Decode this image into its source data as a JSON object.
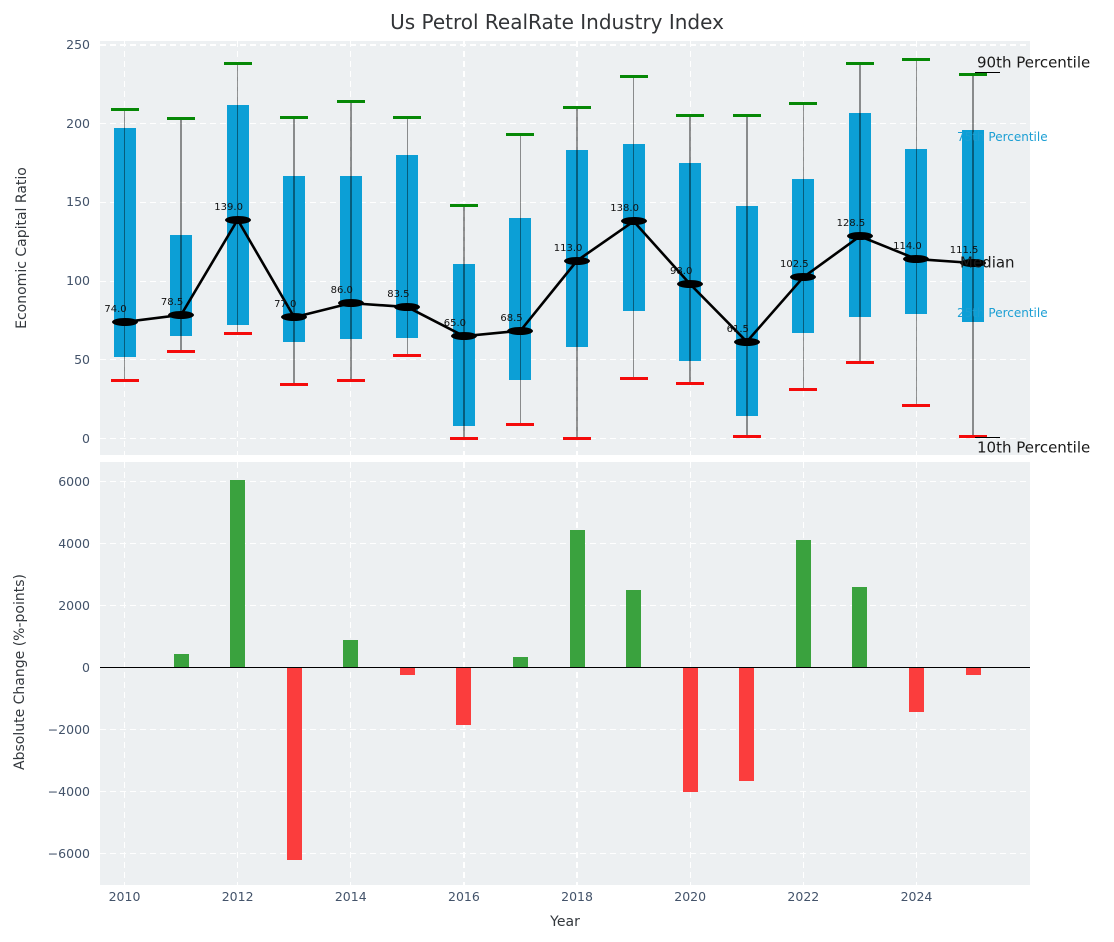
{
  "title": "Us Petrol RealRate Industry Index",
  "styles": {
    "panel_bg": "#edf0f2",
    "grid_color": "#ffffff",
    "tick_color": "#43536a",
    "text_color": "#33383d",
    "title_color": "#323437"
  },
  "chart_data": [
    {
      "type": "boxplot",
      "title": "Us Petrol RealRate Industry Index",
      "ylabel": "Economic Capital Ratio",
      "ylim": [
        -10,
        252
      ],
      "grid": true,
      "yticks": [
        0,
        50,
        100,
        150,
        200,
        250
      ],
      "ytick_labels": [
        "0",
        "50",
        "100",
        "150",
        "200",
        "250"
      ],
      "x": [
        2010,
        2011,
        2012,
        2013,
        2014,
        2015,
        2016,
        2017,
        2018,
        2019,
        2020,
        2021,
        2022,
        2023,
        2024,
        2025
      ],
      "series": [
        {
          "name": "90th Percentile",
          "values": [
            209,
            203,
            238,
            204,
            214,
            204,
            148,
            193,
            210,
            230,
            205,
            205,
            213,
            238,
            241,
            231
          ]
        },
        {
          "name": "75th Percentile",
          "values": [
            197,
            129,
            212,
            167,
            167,
            180,
            111,
            140,
            183,
            187,
            175,
            148,
            165,
            207,
            184,
            196
          ]
        },
        {
          "name": "Median",
          "values": [
            74.0,
            78.5,
            139.0,
            77.0,
            86.0,
            83.5,
            65.0,
            68.5,
            113.0,
            138.0,
            98.0,
            61.5,
            102.5,
            128.5,
            114.0,
            111.5
          ]
        },
        {
          "name": "25th Percentile",
          "values": [
            52,
            65,
            72,
            61,
            63,
            64,
            8,
            37,
            58,
            81,
            49,
            14,
            67,
            77,
            79,
            74
          ]
        },
        {
          "name": "10th Percentile",
          "values": [
            37,
            55,
            67,
            34,
            37,
            53,
            0,
            9,
            0,
            38,
            35,
            1,
            31,
            48,
            21,
            1
          ]
        }
      ],
      "median_point_labels": [
        "74.0",
        "78.5",
        "139.0",
        "77.0",
        "86.0",
        "83.5",
        "65.0",
        "68.5",
        "113.0",
        "138.0",
        "98.0",
        "61.5",
        "102.5",
        "128.5",
        "114.0",
        "111.5"
      ],
      "right_annotations": [
        {
          "label": "90th Percentile",
          "color": "#1a1a1a",
          "size": 15,
          "x": 977,
          "y": 63
        },
        {
          "label": "75th Percentile",
          "color": "#1c9fd4",
          "size": 12,
          "x": 957,
          "y": 137
        },
        {
          "label": "Median",
          "color": "#1a1a1a",
          "size": 15,
          "x": 960,
          "y": 263
        },
        {
          "label": "25th Percentile",
          "color": "#1c9fd4",
          "size": 12,
          "x": 957,
          "y": 313
        },
        {
          "label": "10th Percentile",
          "color": "#1a1a1a",
          "size": 15,
          "x": 977,
          "y": 448
        }
      ],
      "colors": {
        "box": "#0c9fd6",
        "cap_top": "#068806",
        "cap_bottom": "#f40b0b",
        "median_line": "#000000",
        "whisker": "rgba(0,0,0,0.42)"
      }
    },
    {
      "type": "bar",
      "ylabel": "Absolute Change (%-points)",
      "xlabel": "Year",
      "ylim": [
        -7000,
        6650
      ],
      "grid": true,
      "yticks": [
        -6000,
        -4000,
        -2000,
        0,
        2000,
        4000,
        6000
      ],
      "ytick_labels": [
        "−6000",
        "−4000",
        "−2000",
        "0",
        "2000",
        "4000",
        "6000"
      ],
      "x": [
        2010,
        2011,
        2012,
        2013,
        2014,
        2015,
        2016,
        2017,
        2018,
        2019,
        2020,
        2021,
        2022,
        2023,
        2024,
        2025
      ],
      "values": [
        null,
        450,
        6050,
        -6200,
        900,
        -250,
        -1850,
        350,
        4450,
        2500,
        -4000,
        -3650,
        4100,
        2600,
        -1450,
        -250
      ],
      "xticks": [
        2010,
        2012,
        2014,
        2016,
        2018,
        2020,
        2022,
        2024
      ],
      "xtick_labels": [
        "2010",
        "2012",
        "2014",
        "2016",
        "2018",
        "2020",
        "2022",
        "2024"
      ],
      "colors": {
        "positive": "#3aa23e",
        "negative": "#fb3d3d",
        "zero_line": "#000000"
      }
    }
  ]
}
